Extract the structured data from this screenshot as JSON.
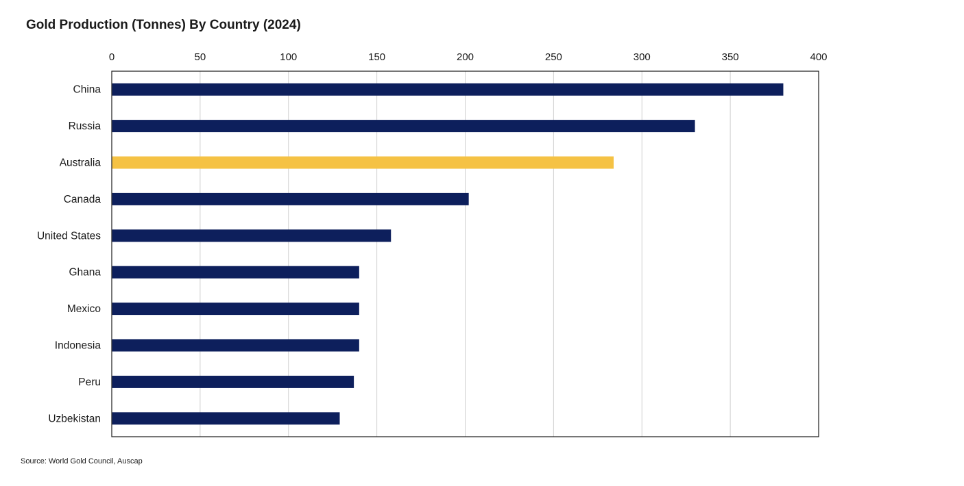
{
  "chart_data": {
    "type": "bar",
    "orientation": "horizontal",
    "title": "Gold Production (Tonnes) By Country (2024)",
    "xlabel": "",
    "ylabel": "",
    "xlim": [
      0,
      400
    ],
    "x_ticks": [
      "0",
      "50",
      "100",
      "150",
      "200",
      "250",
      "300",
      "350",
      "400"
    ],
    "x_axis_position": "top",
    "grid": "vertical",
    "legend": "none",
    "categories": [
      "China",
      "Russia",
      "Australia",
      "Canada",
      "United States",
      "Ghana",
      "Mexico",
      "Indonesia",
      "Peru",
      "Uzbekistan"
    ],
    "values": [
      380,
      330,
      284,
      202,
      158,
      140,
      140,
      140,
      137,
      129
    ],
    "bar_color": "#0d1f5c",
    "highlight": {
      "category": "Australia",
      "color": "#f5c244"
    },
    "source": "Source: World Gold Council, Auscap"
  }
}
